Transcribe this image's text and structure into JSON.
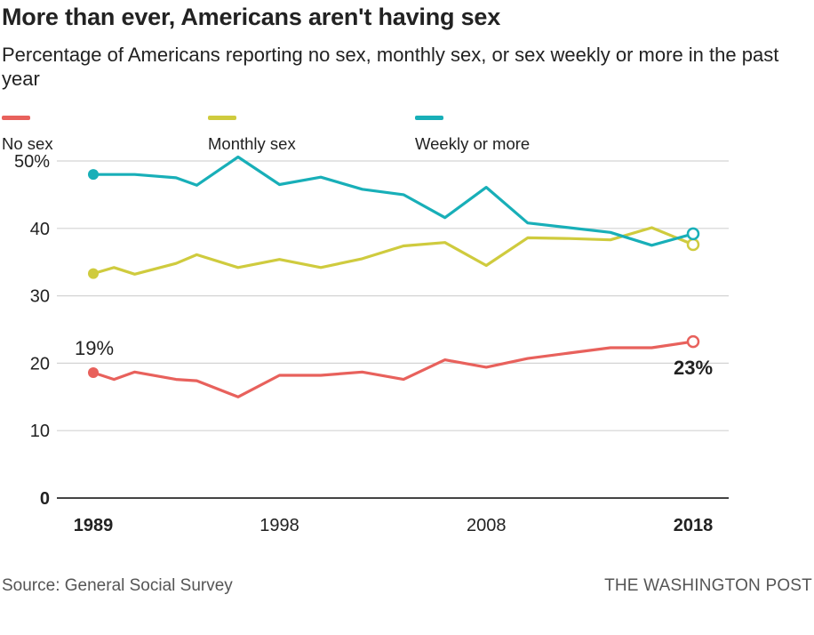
{
  "header": {
    "title": "More than ever, Americans aren't having sex",
    "subtitle": "Percentage of Americans reporting no sex, monthly sex, or sex weekly or more in the past year"
  },
  "footer": {
    "source": "Source: General Social Survey",
    "credit": "THE WASHINGTON POST"
  },
  "chart_data": {
    "type": "line",
    "title": "More than ever, Americans aren't having sex",
    "subtitle": "Percentage of Americans reporting no sex, monthly sex, or sex weekly or more in the past year",
    "xlabel": "",
    "ylabel": "",
    "x_ticks": [
      "1989",
      "1998",
      "2008",
      "2018"
    ],
    "y_ticks": [
      "0",
      "10",
      "20",
      "30",
      "40",
      "50%"
    ],
    "xlim": [
      1989,
      2018
    ],
    "ylim": [
      0,
      50
    ],
    "grid": true,
    "legend_position": "top-left",
    "x": [
      1989,
      1990,
      1991,
      1993,
      1994,
      1996,
      1998,
      2000,
      2002,
      2004,
      2006,
      2008,
      2010,
      2012,
      2014,
      2016,
      2018
    ],
    "series": [
      {
        "name": "No sex",
        "color": "#e8615c",
        "values": [
          18.6,
          17.6,
          18.7,
          17.6,
          17.4,
          15.0,
          18.2,
          18.2,
          18.7,
          17.6,
          20.5,
          19.4,
          20.7,
          21.5,
          22.3,
          22.3,
          23.2
        ]
      },
      {
        "name": "Monthly sex",
        "color": "#cfcb3e",
        "values": [
          33.3,
          34.2,
          33.2,
          34.8,
          36.1,
          34.2,
          35.4,
          34.2,
          35.5,
          37.4,
          37.9,
          34.5,
          38.6,
          38.5,
          38.3,
          40.1,
          37.6
        ]
      },
      {
        "name": "Weekly or more",
        "color": "#18afb8",
        "values": [
          48.0,
          48.0,
          48.0,
          47.5,
          46.4,
          50.6,
          46.5,
          47.6,
          45.8,
          45.0,
          41.6,
          46.1,
          40.8,
          40.1,
          39.4,
          37.5,
          39.2
        ]
      }
    ],
    "annotations": [
      {
        "text": "19%",
        "series": "No sex",
        "x": 1989
      },
      {
        "text": "23%",
        "series": "No sex",
        "x": 2018
      }
    ]
  }
}
